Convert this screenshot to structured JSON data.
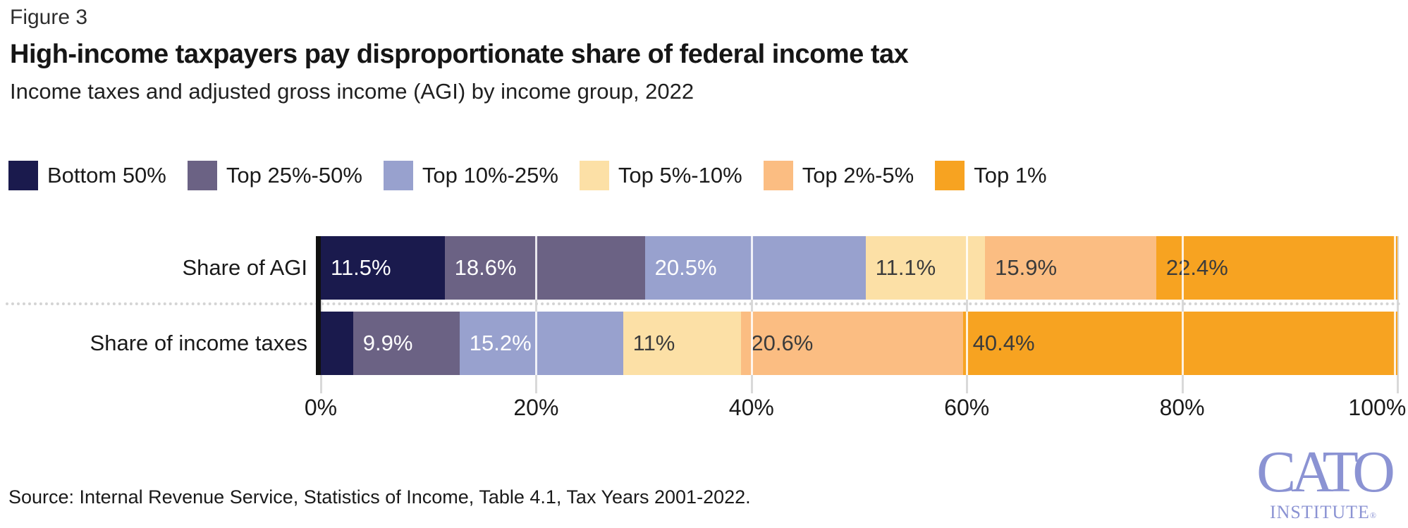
{
  "figure_label": "Figure 3",
  "title": "High-income taxpayers pay disproportionate share of federal income tax",
  "subtitle": "Income taxes and adjusted gross income (AGI) by income group, 2022",
  "source": "Source: Internal Revenue Service, Statistics of Income, Table 4.1, Tax Years 2001-2022.",
  "logo": {
    "name": "CATO",
    "sub": "INSTITUTE",
    "reg": "®"
  },
  "colors": {
    "background": "#ffffff",
    "axis": "#101010",
    "gridline_under": "#d9d9d9",
    "gridline_over_bars": "#ffffff",
    "dotted_separator": "#d4d4d4",
    "logo": "#8b93d3"
  },
  "chart_data": {
    "type": "bar",
    "orientation": "horizontal",
    "stacked": true,
    "title": "High-income taxpayers pay disproportionate share of federal income tax",
    "subtitle": "Income taxes and adjusted gross income (AGI) by income group, 2022",
    "categories": [
      "Share of AGI",
      "Share of income taxes"
    ],
    "series": [
      {
        "name": "Bottom 50%",
        "color": "#1a1a4d",
        "label_color": "#ffffff",
        "values": [
          11.5,
          3.0
        ],
        "labels": [
          "11.5%",
          ""
        ]
      },
      {
        "name": "Top 25%-50%",
        "color": "#6b6284",
        "label_color": "#ffffff",
        "values": [
          18.6,
          9.9
        ],
        "labels": [
          "18.6%",
          "9.9%"
        ]
      },
      {
        "name": "Top 10%-25%",
        "color": "#98a1ce",
        "label_color": "#ffffff",
        "values": [
          20.5,
          15.2
        ],
        "labels": [
          "20.5%",
          "15.2%"
        ]
      },
      {
        "name": "Top 5%-10%",
        "color": "#fce0a6",
        "label_color": "#3b3b3b",
        "values": [
          11.1,
          11.0
        ],
        "labels": [
          "11.1%",
          "11%"
        ]
      },
      {
        "name": "Top 2%-5%",
        "color": "#fbbd82",
        "label_color": "#3b3b3b",
        "values": [
          15.9,
          20.6
        ],
        "labels": [
          "15.9%",
          "20.6%"
        ]
      },
      {
        "name": "Top 1%",
        "color": "#f7a321",
        "label_color": "#3b3b3b",
        "values": [
          22.4,
          40.4
        ],
        "labels": [
          "22.4%",
          "40.4%"
        ]
      }
    ],
    "x_ticks": [
      {
        "label": "0%",
        "value": 0
      },
      {
        "label": "20%",
        "value": 20
      },
      {
        "label": "40%",
        "value": 40
      },
      {
        "label": "60%",
        "value": 60
      },
      {
        "label": "80%",
        "value": 80
      },
      {
        "label": "100%",
        "value": 100
      }
    ],
    "xlim": [
      0,
      100
    ],
    "grid": true,
    "legend_position": "top"
  }
}
